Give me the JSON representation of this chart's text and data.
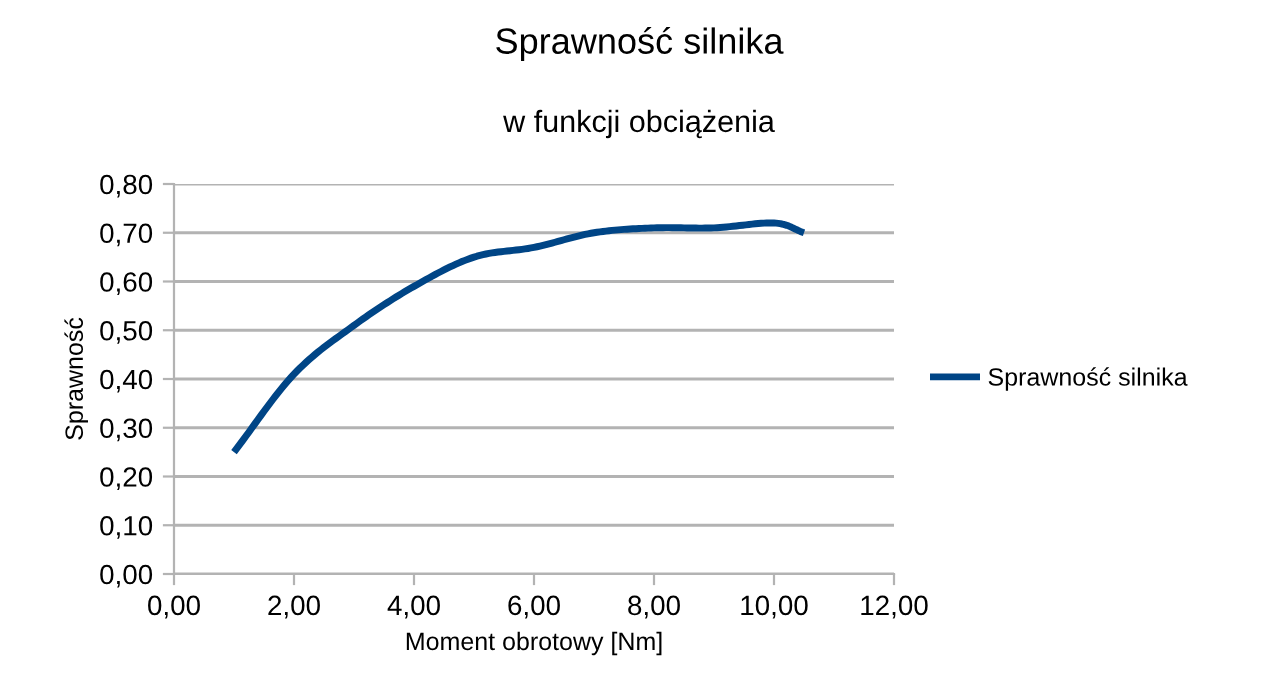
{
  "chart_data": {
    "type": "line",
    "title": "Sprawność silnika",
    "subtitle": "w funkcji obciążenia",
    "xlabel": "Moment obrotowy [Nm]",
    "ylabel": "Sprawność",
    "x": [
      1,
      2,
      3,
      4,
      5,
      6,
      7,
      8,
      9,
      10,
      10.5
    ],
    "series": [
      {
        "name": "Sprawność silnika",
        "color": "#004586",
        "values": [
          0.25,
          0.41,
          0.51,
          0.59,
          0.65,
          0.67,
          0.7,
          0.71,
          0.71,
          0.72,
          0.7
        ]
      }
    ],
    "xlim": [
      0,
      12
    ],
    "xticks": [
      {
        "value": 0,
        "label": "0,00"
      },
      {
        "value": 2,
        "label": "2,00"
      },
      {
        "value": 4,
        "label": "4,00"
      },
      {
        "value": 6,
        "label": "6,00"
      },
      {
        "value": 8,
        "label": "8,00"
      },
      {
        "value": 10,
        "label": "10,00"
      },
      {
        "value": 12,
        "label": "12,00"
      }
    ],
    "ylim": [
      0,
      0.8
    ],
    "yticks": [
      {
        "value": 0,
        "label": "0,00"
      },
      {
        "value": 0.1,
        "label": "0,10"
      },
      {
        "value": 0.2,
        "label": "0,20"
      },
      {
        "value": 0.3,
        "label": "0,30"
      },
      {
        "value": 0.4,
        "label": "0,40"
      },
      {
        "value": 0.5,
        "label": "0,50"
      },
      {
        "value": 0.6,
        "label": "0,60"
      },
      {
        "value": 0.7,
        "label": "0,70"
      },
      {
        "value": 0.8,
        "label": "0,80"
      }
    ],
    "grid": "y",
    "legend": "right",
    "marker": "none",
    "line_style": "solid"
  }
}
